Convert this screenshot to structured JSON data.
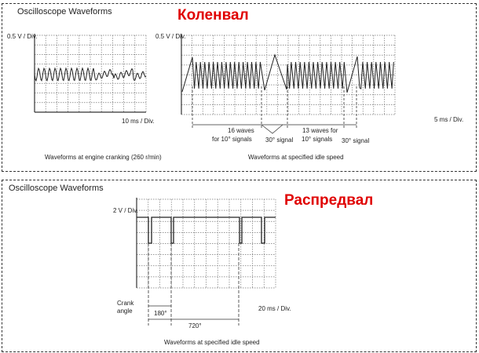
{
  "crank": {
    "title": "Oscilloscope Waveforms",
    "heading": "Коленвал",
    "heading_color": "#e00000",
    "left": {
      "volt_div": "0.5 V / Div.",
      "time_div": "10 ms / Div.",
      "caption": "Waveforms at engine cranking (260 r/min)"
    },
    "right": {
      "volt_div": "0.5 V / Div.",
      "time_div": "5 ms / Div.",
      "caption": "Waveforms at specified idle speed",
      "label_16": "16 waves",
      "label_16b": "for 10° signals",
      "label_30a": "30° signal",
      "label_13": "13 waves for",
      "label_13b": "10° signals",
      "label_30b": "30° signal",
      "wave_counts": [
        16,
        13
      ]
    }
  },
  "cam": {
    "title": "Oscilloscope Waveforms",
    "heading": "Распредвал",
    "volt_div": "2 V / Div.",
    "time_div": "20 ms / Div.",
    "crank_angle": "Crank",
    "crank_angle2": "angle",
    "angle_180": "180°",
    "angle_720": "720°",
    "caption": "Waveforms at specified idle speed"
  }
}
